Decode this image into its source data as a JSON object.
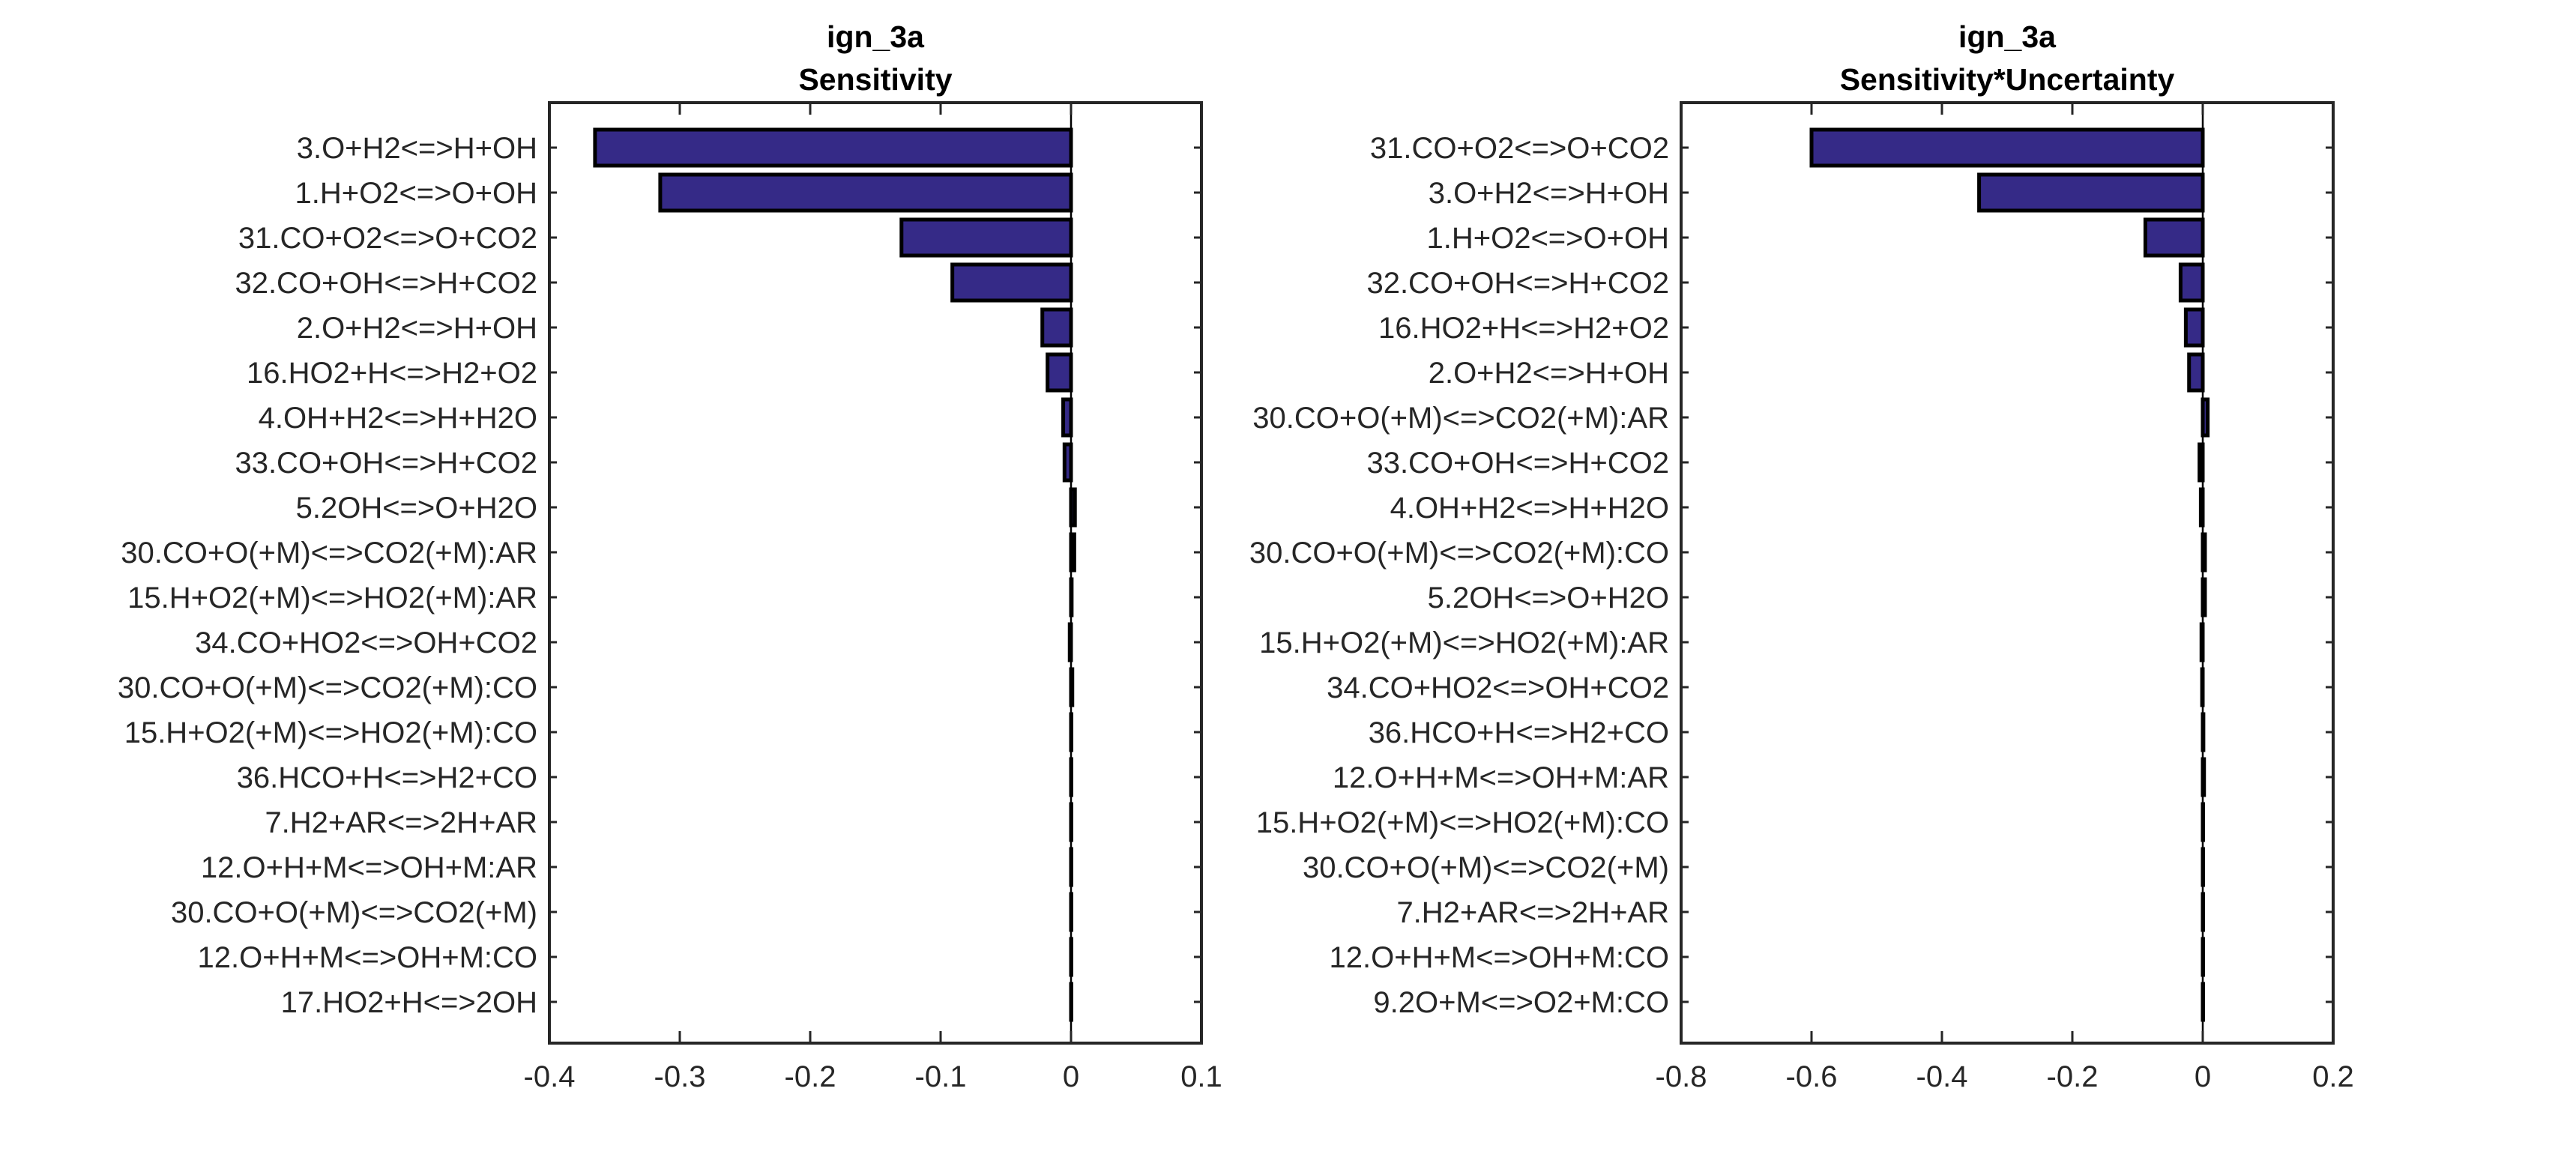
{
  "figure": {
    "bar_color": "#352A87",
    "bar_edge_color": "#000000",
    "text_color": "#262626"
  },
  "chart_data": [
    {
      "type": "bar",
      "orientation": "horizontal",
      "title": "ign_3a",
      "subtitle": "Sensitivity",
      "xlabel": "",
      "ylabel": "",
      "xlim": [
        -0.4,
        0.1
      ],
      "xticks": [
        -0.4,
        -0.3,
        -0.2,
        -0.1,
        0,
        0.1
      ],
      "xtick_labels": [
        "-0.4",
        "-0.3",
        "-0.2",
        "-0.1",
        "0",
        "0.1"
      ],
      "grid": false,
      "categories": [
        "3.O+H2<=>H+OH",
        "1.H+O2<=>O+OH",
        "31.CO+O2<=>O+CO2",
        "32.CO+OH<=>H+CO2",
        "2.O+H2<=>H+OH",
        "16.HO2+H<=>H2+O2",
        "4.OH+H2<=>H+H2O",
        "33.CO+OH<=>H+CO2",
        "5.2OH<=>O+H2O",
        "30.CO+O(+M)<=>CO2(+M):AR",
        "15.H+O2(+M)<=>HO2(+M):AR",
        "34.CO+HO2<=>OH+CO2",
        "30.CO+O(+M)<=>CO2(+M):CO",
        "15.H+O2(+M)<=>HO2(+M):CO",
        "36.HCO+H<=>H2+CO",
        "7.H2+AR<=>2H+AR",
        "12.O+H+M<=>OH+M:AR",
        "30.CO+O(+M)<=>CO2(+M)",
        "12.O+H+M<=>OH+M:CO",
        "17.HO2+H<=>2OH"
      ],
      "values": [
        -0.365,
        -0.315,
        -0.13,
        -0.091,
        -0.022,
        -0.018,
        -0.006,
        -0.005,
        0.003,
        0.0025,
        0.0005,
        -0.001,
        0.001,
        0.0003,
        0.0002,
        0.0002,
        0.0002,
        0.0002,
        0.0001,
        0.0001
      ]
    },
    {
      "type": "bar",
      "orientation": "horizontal",
      "title": "ign_3a",
      "subtitle": "Sensitivity*Uncertainty",
      "xlabel": "",
      "ylabel": "",
      "xlim": [
        -0.8,
        0.2
      ],
      "xticks": [
        -0.8,
        -0.6,
        -0.4,
        -0.2,
        0,
        0.2
      ],
      "xtick_labels": [
        "-0.8",
        "-0.6",
        "-0.4",
        "-0.2",
        "0",
        "0.2"
      ],
      "grid": false,
      "categories": [
        "31.CO+O2<=>O+CO2",
        "3.O+H2<=>H+OH",
        "1.H+O2<=>O+OH",
        "32.CO+OH<=>H+CO2",
        "16.HO2+H<=>H2+O2",
        "2.O+H2<=>H+OH",
        "30.CO+O(+M)<=>CO2(+M):AR",
        "33.CO+OH<=>H+CO2",
        "4.OH+H2<=>H+H2O",
        "30.CO+O(+M)<=>CO2(+M):CO",
        "5.2OH<=>O+H2O",
        "15.H+O2(+M)<=>HO2(+M):AR",
        "34.CO+HO2<=>OH+CO2",
        "36.HCO+H<=>H2+CO",
        "12.O+H+M<=>OH+M:AR",
        "15.H+O2(+M)<=>HO2(+M):CO",
        "30.CO+O(+M)<=>CO2(+M)",
        "7.H2+AR<=>2H+AR",
        "12.O+H+M<=>OH+M:CO",
        "9.2O+M<=>O2+M:CO"
      ],
      "values": [
        -0.6,
        -0.343,
        -0.088,
        -0.034,
        -0.026,
        -0.021,
        0.0076,
        -0.005,
        -0.003,
        0.0034,
        0.0034,
        -0.002,
        -0.001,
        0.001,
        0.002,
        0.0005,
        0.0004,
        0.0003,
        0.0002,
        0.0002
      ]
    }
  ]
}
